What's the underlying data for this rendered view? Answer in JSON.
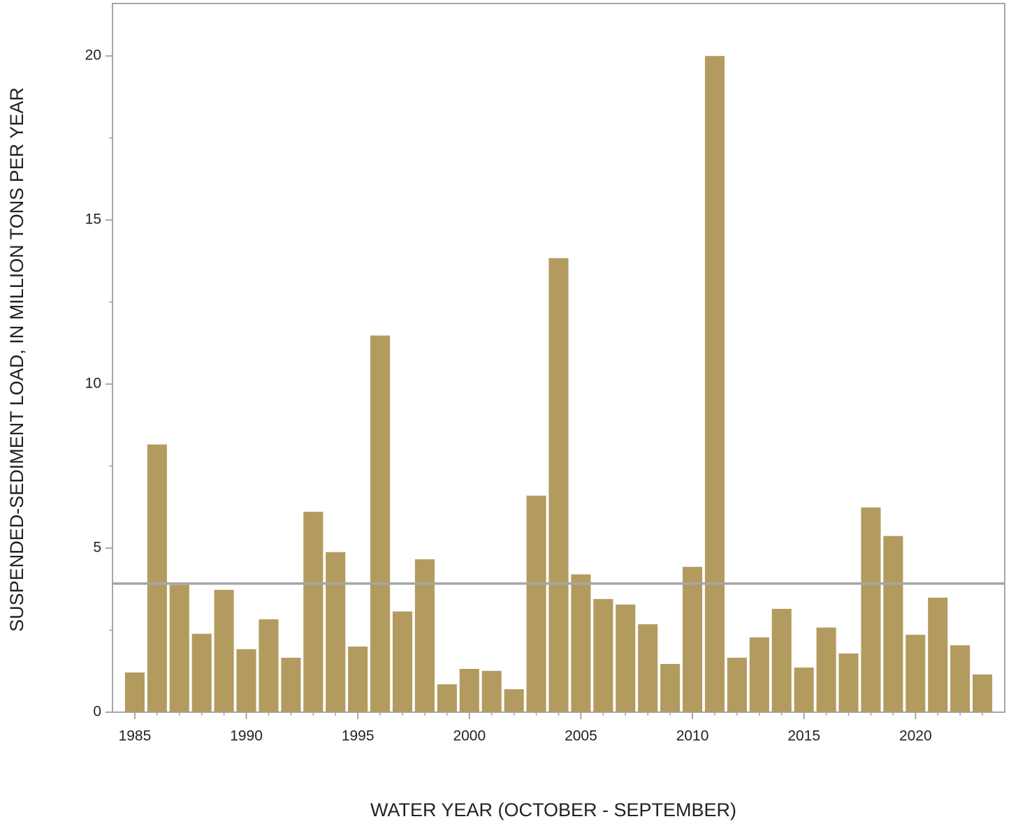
{
  "chart_data": {
    "type": "bar",
    "x_label": "WATER YEAR (OCTOBER - SEPTEMBER)",
    "y_label": "SUSPENDED-SEDIMENT LOAD, IN MILLION TONS PER YEAR",
    "x": [
      1985,
      1986,
      1987,
      1988,
      1989,
      1990,
      1991,
      1992,
      1993,
      1994,
      1995,
      1996,
      1997,
      1998,
      1999,
      2000,
      2001,
      2002,
      2003,
      2004,
      2005,
      2006,
      2007,
      2008,
      2009,
      2010,
      2011,
      2012,
      2013,
      2014,
      2015,
      2016,
      2017,
      2018,
      2019,
      2020,
      2021,
      2022,
      2023
    ],
    "values": [
      1.21,
      8.16,
      3.88,
      2.39,
      3.73,
      1.92,
      2.83,
      1.66,
      6.11,
      4.88,
      2.0,
      11.48,
      3.07,
      4.66,
      0.85,
      1.32,
      1.26,
      0.7,
      6.6,
      13.84,
      4.2,
      3.45,
      3.28,
      2.68,
      1.47,
      4.43,
      20.0,
      1.66,
      2.28,
      3.15,
      1.36,
      2.58,
      1.79,
      6.24,
      5.37,
      2.36,
      3.49,
      2.04,
      1.15
    ],
    "color": "#b39b60",
    "reference_line": 3.92,
    "reference_color": "#a6a6a6",
    "xlim": [
      1984,
      2024
    ],
    "xticks": [
      1985,
      1990,
      1995,
      2000,
      2005,
      2010,
      2015,
      2020
    ],
    "ylim": [
      0,
      21.6
    ],
    "yticks": [
      0,
      5,
      10,
      15,
      20
    ],
    "yminorticks": [
      2.5,
      7.5,
      12.5,
      17.5
    ],
    "grid": false
  }
}
